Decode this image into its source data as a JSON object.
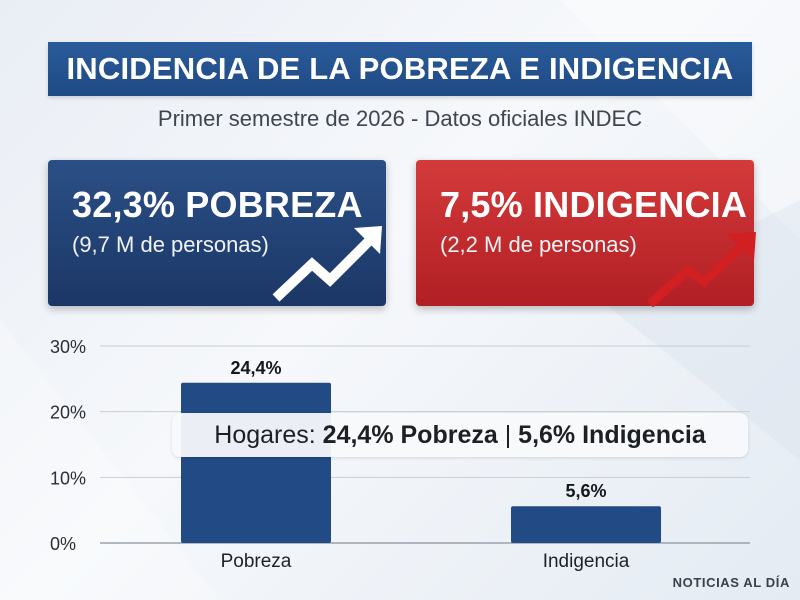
{
  "header": {
    "title": "INCIDENCIA DE LA POBREZA E INDIGENCIA",
    "subtitle": "Primer semestre de 2026 - Datos oficiales INDEC"
  },
  "cards": {
    "pobreza": {
      "headline": "32,3% POBREZA",
      "detail": "(9,7 M de personas)",
      "color": "#1f3f73"
    },
    "indigencia": {
      "headline": "7,5% INDIGENCIA",
      "detail": "(2,2 M de personas)",
      "color": "#c22a2d"
    }
  },
  "callout": {
    "prefix": "Hogares:",
    "pobreza": "24,4% Pobreza",
    "separator": "|",
    "indigencia": "5,6% Indigencia"
  },
  "source": "NOTICIAS AL DÍA",
  "chart_data": {
    "type": "bar",
    "categories": [
      "Pobreza",
      "Indigencia"
    ],
    "values": [
      24.4,
      5.6
    ],
    "data_labels": [
      "24,4%",
      "5,6%"
    ],
    "yticks": [
      "0%",
      "10%",
      "20%",
      "30%"
    ],
    "ytick_values": [
      0,
      10,
      20,
      30
    ],
    "ylim": [
      0,
      30
    ],
    "grid": true,
    "bar_color": "#224a84"
  }
}
